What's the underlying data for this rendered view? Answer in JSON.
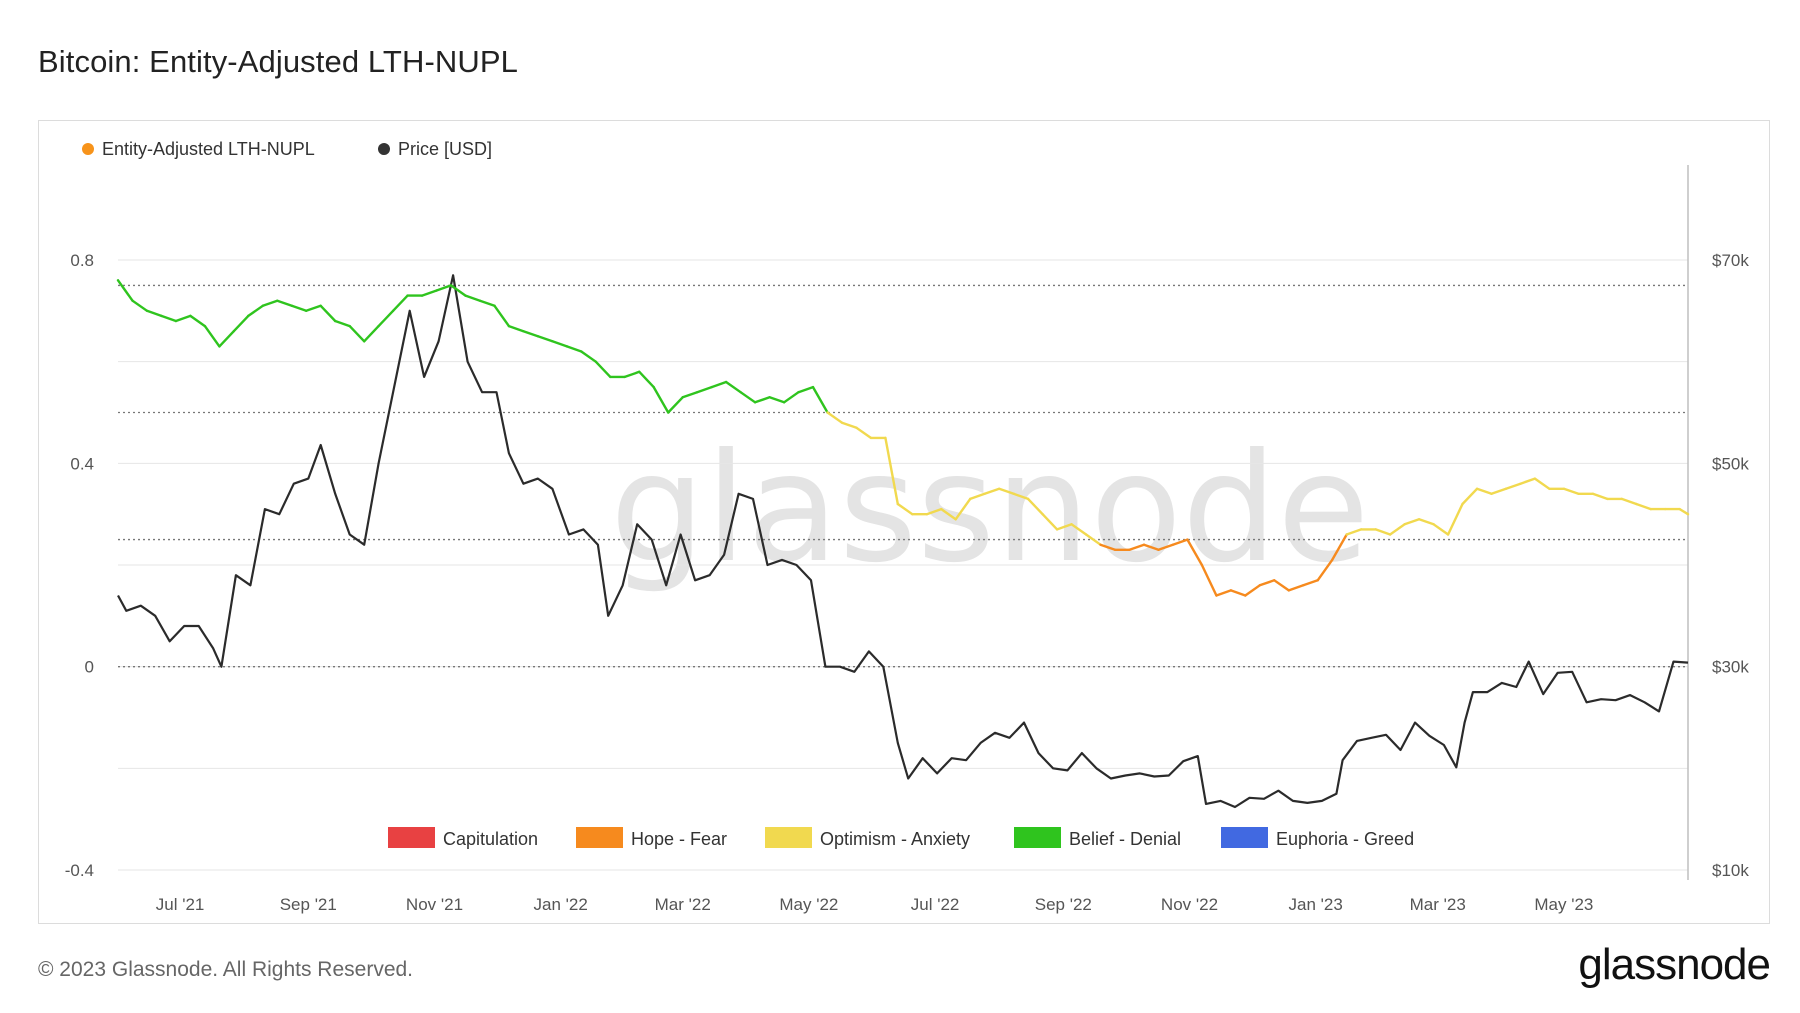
{
  "title": "Bitcoin: Entity-Adjusted LTH-NUPL",
  "footer": "© 2023 Glassnode. All Rights Reserved.",
  "brand": "glassnode",
  "watermark": "glassnode",
  "chart_data": {
    "type": "line",
    "legend": [
      {
        "label": "Entity-Adjusted LTH-NUPL",
        "color": "#f7931a"
      },
      {
        "label": "Price [USD]",
        "color": "#333333"
      }
    ],
    "left_axis": {
      "ticks": [
        {
          "v": 0.8,
          "label": "0.8"
        },
        {
          "v": 0.4,
          "label": "0.4"
        },
        {
          "v": 0,
          "label": "0"
        },
        {
          "v": -0.4,
          "label": "-0.4"
        }
      ],
      "range": [
        -0.4,
        0.8
      ]
    },
    "right_axis": {
      "scale": "linear",
      "ticks": [
        {
          "v": 70000,
          "label": "$70k"
        },
        {
          "v": 50000,
          "label": "$50k"
        },
        {
          "v": 30000,
          "label": "$30k"
        },
        {
          "v": 10000,
          "label": "$10k"
        }
      ],
      "range": [
        10000,
        70000
      ]
    },
    "x_axis": {
      "start": "2021-06-01",
      "end": "2023-06-30",
      "ticks": [
        {
          "date": "2021-07-01",
          "label": "Jul '21"
        },
        {
          "date": "2021-09-01",
          "label": "Sep '21"
        },
        {
          "date": "2021-11-01",
          "label": "Nov '21"
        },
        {
          "date": "2022-01-01",
          "label": "Jan '22"
        },
        {
          "date": "2022-03-01",
          "label": "Mar '22"
        },
        {
          "date": "2022-05-01",
          "label": "May '22"
        },
        {
          "date": "2022-07-01",
          "label": "Jul '22"
        },
        {
          "date": "2022-09-01",
          "label": "Sep '22"
        },
        {
          "date": "2022-11-01",
          "label": "Nov '22"
        },
        {
          "date": "2023-01-01",
          "label": "Jan '23"
        },
        {
          "date": "2023-03-01",
          "label": "Mar '23"
        },
        {
          "date": "2023-05-01",
          "label": "May '23"
        }
      ]
    },
    "zones": [
      {
        "label": "Capitulation",
        "color": "#e84142",
        "min": -1,
        "max": 0
      },
      {
        "label": "Hope - Fear",
        "color": "#f68a1e",
        "min": 0,
        "max": 0.25
      },
      {
        "label": "Optimism - Anxiety",
        "color": "#f1d94f",
        "min": 0.25,
        "max": 0.5
      },
      {
        "label": "Belief - Denial",
        "color": "#2fc41e",
        "min": 0.5,
        "max": 0.75
      },
      {
        "label": "Euphoria - Greed",
        "color": "#4169e1",
        "min": 0.75,
        "max": 1
      }
    ],
    "zone_lines": [
      0.75,
      0.5,
      0.25,
      0
    ],
    "series": [
      {
        "name": "Entity-Adjusted LTH-NUPL",
        "points": [
          [
            "2021-06-01",
            0.76
          ],
          [
            "2021-06-08",
            0.72
          ],
          [
            "2021-06-15",
            0.7
          ],
          [
            "2021-06-22",
            0.69
          ],
          [
            "2021-06-29",
            0.68
          ],
          [
            "2021-07-06",
            0.69
          ],
          [
            "2021-07-13",
            0.67
          ],
          [
            "2021-07-20",
            0.63
          ],
          [
            "2021-07-27",
            0.66
          ],
          [
            "2021-08-03",
            0.69
          ],
          [
            "2021-08-10",
            0.71
          ],
          [
            "2021-08-17",
            0.72
          ],
          [
            "2021-08-24",
            0.71
          ],
          [
            "2021-08-31",
            0.7
          ],
          [
            "2021-09-07",
            0.71
          ],
          [
            "2021-09-14",
            0.68
          ],
          [
            "2021-09-21",
            0.67
          ],
          [
            "2021-09-28",
            0.64
          ],
          [
            "2021-10-05",
            0.67
          ],
          [
            "2021-10-12",
            0.7
          ],
          [
            "2021-10-19",
            0.73
          ],
          [
            "2021-10-26",
            0.73
          ],
          [
            "2021-11-02",
            0.74
          ],
          [
            "2021-11-09",
            0.75
          ],
          [
            "2021-11-16",
            0.73
          ],
          [
            "2021-11-23",
            0.72
          ],
          [
            "2021-11-30",
            0.71
          ],
          [
            "2021-12-07",
            0.67
          ],
          [
            "2021-12-14",
            0.66
          ],
          [
            "2021-12-21",
            0.65
          ],
          [
            "2021-12-28",
            0.64
          ],
          [
            "2022-01-04",
            0.63
          ],
          [
            "2022-01-11",
            0.62
          ],
          [
            "2022-01-18",
            0.6
          ],
          [
            "2022-01-25",
            0.57
          ],
          [
            "2022-02-01",
            0.57
          ],
          [
            "2022-02-08",
            0.58
          ],
          [
            "2022-02-15",
            0.55
          ],
          [
            "2022-02-22",
            0.5
          ],
          [
            "2022-03-01",
            0.53
          ],
          [
            "2022-03-08",
            0.54
          ],
          [
            "2022-03-15",
            0.55
          ],
          [
            "2022-03-22",
            0.56
          ],
          [
            "2022-03-29",
            0.54
          ],
          [
            "2022-04-05",
            0.52
          ],
          [
            "2022-04-12",
            0.53
          ],
          [
            "2022-04-19",
            0.52
          ],
          [
            "2022-04-26",
            0.54
          ],
          [
            "2022-05-03",
            0.55
          ],
          [
            "2022-05-10",
            0.5
          ],
          [
            "2022-05-17",
            0.48
          ],
          [
            "2022-05-24",
            0.47
          ],
          [
            "2022-05-31",
            0.45
          ],
          [
            "2022-06-07",
            0.45
          ],
          [
            "2022-06-13",
            0.32
          ],
          [
            "2022-06-20",
            0.3
          ],
          [
            "2022-06-27",
            0.3
          ],
          [
            "2022-07-04",
            0.31
          ],
          [
            "2022-07-11",
            0.29
          ],
          [
            "2022-07-18",
            0.33
          ],
          [
            "2022-07-25",
            0.34
          ],
          [
            "2022-08-01",
            0.35
          ],
          [
            "2022-08-08",
            0.34
          ],
          [
            "2022-08-15",
            0.33
          ],
          [
            "2022-08-22",
            0.3
          ],
          [
            "2022-08-29",
            0.27
          ],
          [
            "2022-09-05",
            0.28
          ],
          [
            "2022-09-12",
            0.26
          ],
          [
            "2022-09-19",
            0.24
          ],
          [
            "2022-09-26",
            0.23
          ],
          [
            "2022-10-03",
            0.23
          ],
          [
            "2022-10-10",
            0.24
          ],
          [
            "2022-10-17",
            0.23
          ],
          [
            "2022-10-24",
            0.24
          ],
          [
            "2022-10-31",
            0.25
          ],
          [
            "2022-11-07",
            0.2
          ],
          [
            "2022-11-14",
            0.14
          ],
          [
            "2022-11-21",
            0.15
          ],
          [
            "2022-11-28",
            0.14
          ],
          [
            "2022-12-05",
            0.16
          ],
          [
            "2022-12-12",
            0.17
          ],
          [
            "2022-12-19",
            0.15
          ],
          [
            "2022-12-26",
            0.16
          ],
          [
            "2023-01-02",
            0.17
          ],
          [
            "2023-01-09",
            0.21
          ],
          [
            "2023-01-16",
            0.26
          ],
          [
            "2023-01-23",
            0.27
          ],
          [
            "2023-01-30",
            0.27
          ],
          [
            "2023-02-06",
            0.26
          ],
          [
            "2023-02-13",
            0.28
          ],
          [
            "2023-02-20",
            0.29
          ],
          [
            "2023-02-27",
            0.28
          ],
          [
            "2023-03-06",
            0.26
          ],
          [
            "2023-03-13",
            0.32
          ],
          [
            "2023-03-20",
            0.35
          ],
          [
            "2023-03-27",
            0.34
          ],
          [
            "2023-04-03",
            0.35
          ],
          [
            "2023-04-10",
            0.36
          ],
          [
            "2023-04-17",
            0.37
          ],
          [
            "2023-04-24",
            0.35
          ],
          [
            "2023-05-01",
            0.35
          ],
          [
            "2023-05-08",
            0.34
          ],
          [
            "2023-05-15",
            0.34
          ],
          [
            "2023-05-22",
            0.33
          ],
          [
            "2023-05-29",
            0.33
          ],
          [
            "2023-06-05",
            0.32
          ],
          [
            "2023-06-12",
            0.31
          ],
          [
            "2023-06-19",
            0.31
          ],
          [
            "2023-06-26",
            0.31
          ],
          [
            "2023-06-30",
            0.3
          ]
        ]
      },
      {
        "name": "Price [USD]",
        "points": [
          [
            "2021-06-01",
            37000
          ],
          [
            "2021-06-05",
            35500
          ],
          [
            "2021-06-12",
            36000
          ],
          [
            "2021-06-19",
            35000
          ],
          [
            "2021-06-26",
            32500
          ],
          [
            "2021-07-03",
            34000
          ],
          [
            "2021-07-10",
            34000
          ],
          [
            "2021-07-17",
            31800
          ],
          [
            "2021-07-21",
            30000
          ],
          [
            "2021-07-28",
            39000
          ],
          [
            "2021-08-04",
            38000
          ],
          [
            "2021-08-11",
            45500
          ],
          [
            "2021-08-18",
            45000
          ],
          [
            "2021-08-25",
            48000
          ],
          [
            "2021-09-01",
            48500
          ],
          [
            "2021-09-07",
            51800
          ],
          [
            "2021-09-14",
            47000
          ],
          [
            "2021-09-21",
            43000
          ],
          [
            "2021-09-28",
            42000
          ],
          [
            "2021-10-05",
            50000
          ],
          [
            "2021-10-12",
            57000
          ],
          [
            "2021-10-20",
            65000
          ],
          [
            "2021-10-27",
            58500
          ],
          [
            "2021-11-03",
            62000
          ],
          [
            "2021-11-10",
            68500
          ],
          [
            "2021-11-17",
            60000
          ],
          [
            "2021-11-24",
            57000
          ],
          [
            "2021-12-01",
            57000
          ],
          [
            "2021-12-07",
            51000
          ],
          [
            "2021-12-14",
            48000
          ],
          [
            "2021-12-21",
            48500
          ],
          [
            "2021-12-28",
            47500
          ],
          [
            "2022-01-05",
            43000
          ],
          [
            "2022-01-12",
            43500
          ],
          [
            "2022-01-19",
            42000
          ],
          [
            "2022-01-24",
            35000
          ],
          [
            "2022-01-31",
            38000
          ],
          [
            "2022-02-07",
            44000
          ],
          [
            "2022-02-14",
            42500
          ],
          [
            "2022-02-21",
            38000
          ],
          [
            "2022-02-28",
            43000
          ],
          [
            "2022-03-07",
            38500
          ],
          [
            "2022-03-14",
            39000
          ],
          [
            "2022-03-21",
            41000
          ],
          [
            "2022-03-28",
            47000
          ],
          [
            "2022-04-04",
            46500
          ],
          [
            "2022-04-11",
            40000
          ],
          [
            "2022-04-18",
            40500
          ],
          [
            "2022-04-25",
            40000
          ],
          [
            "2022-05-02",
            38500
          ],
          [
            "2022-05-09",
            30000
          ],
          [
            "2022-05-16",
            30000
          ],
          [
            "2022-05-23",
            29500
          ],
          [
            "2022-05-30",
            31500
          ],
          [
            "2022-06-06",
            30000
          ],
          [
            "2022-06-13",
            22500
          ],
          [
            "2022-06-18",
            19000
          ],
          [
            "2022-06-25",
            21000
          ],
          [
            "2022-07-02",
            19500
          ],
          [
            "2022-07-09",
            21000
          ],
          [
            "2022-07-16",
            20800
          ],
          [
            "2022-07-23",
            22500
          ],
          [
            "2022-07-30",
            23500
          ],
          [
            "2022-08-06",
            23000
          ],
          [
            "2022-08-13",
            24500
          ],
          [
            "2022-08-20",
            21500
          ],
          [
            "2022-08-27",
            20000
          ],
          [
            "2022-09-03",
            19800
          ],
          [
            "2022-09-10",
            21500
          ],
          [
            "2022-09-17",
            20000
          ],
          [
            "2022-09-24",
            19000
          ],
          [
            "2022-10-01",
            19300
          ],
          [
            "2022-10-08",
            19500
          ],
          [
            "2022-10-15",
            19200
          ],
          [
            "2022-10-22",
            19300
          ],
          [
            "2022-10-29",
            20700
          ],
          [
            "2022-11-05",
            21200
          ],
          [
            "2022-11-09",
            16500
          ],
          [
            "2022-11-16",
            16800
          ],
          [
            "2022-11-23",
            16200
          ],
          [
            "2022-11-30",
            17100
          ],
          [
            "2022-12-07",
            17000
          ],
          [
            "2022-12-14",
            17800
          ],
          [
            "2022-12-21",
            16800
          ],
          [
            "2022-12-28",
            16600
          ],
          [
            "2023-01-04",
            16800
          ],
          [
            "2023-01-11",
            17500
          ],
          [
            "2023-01-14",
            20800
          ],
          [
            "2023-01-21",
            22700
          ],
          [
            "2023-01-28",
            23000
          ],
          [
            "2023-02-04",
            23300
          ],
          [
            "2023-02-11",
            21800
          ],
          [
            "2023-02-18",
            24500
          ],
          [
            "2023-02-25",
            23200
          ],
          [
            "2023-03-04",
            22300
          ],
          [
            "2023-03-10",
            20100
          ],
          [
            "2023-03-14",
            24500
          ],
          [
            "2023-03-18",
            27500
          ],
          [
            "2023-03-25",
            27500
          ],
          [
            "2023-04-01",
            28400
          ],
          [
            "2023-04-08",
            28000
          ],
          [
            "2023-04-14",
            30500
          ],
          [
            "2023-04-21",
            27300
          ],
          [
            "2023-04-28",
            29400
          ],
          [
            "2023-05-05",
            29500
          ],
          [
            "2023-05-12",
            26500
          ],
          [
            "2023-05-19",
            26800
          ],
          [
            "2023-05-26",
            26700
          ],
          [
            "2023-06-02",
            27200
          ],
          [
            "2023-06-09",
            26500
          ],
          [
            "2023-06-16",
            25600
          ],
          [
            "2023-06-23",
            30500
          ],
          [
            "2023-06-30",
            30400
          ]
        ]
      }
    ]
  }
}
